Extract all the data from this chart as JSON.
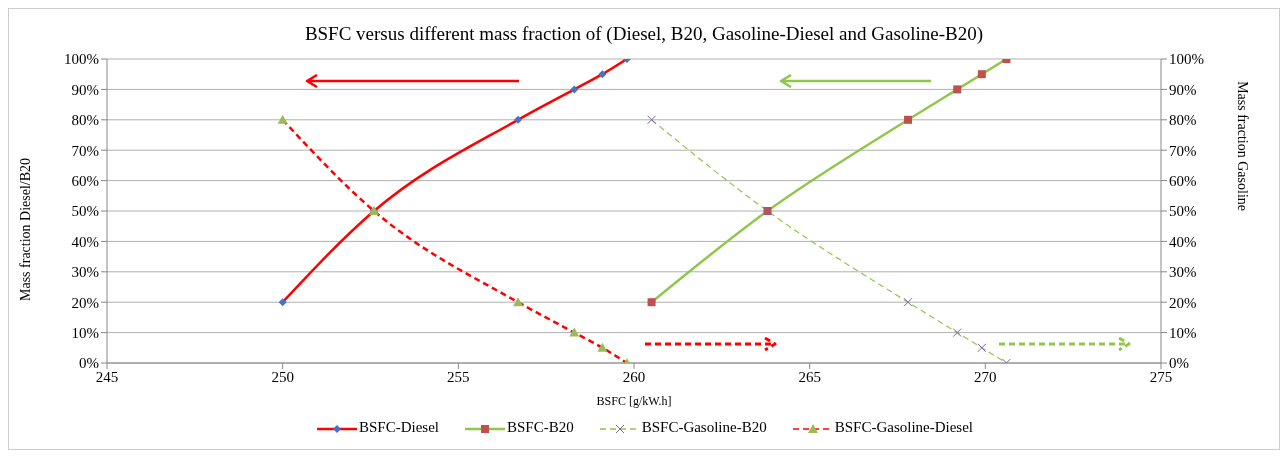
{
  "chart_data": {
    "type": "line",
    "title": "BSFC versus different mass fraction of (Diesel, B20, Gasoline-Diesel and Gasoline-B20)",
    "xlabel": "BSFC [g/kW.h]",
    "ylabel": "Mass fraction Diesel/B20",
    "y2label": "Mass fraction Gasoline",
    "xlim": [
      245,
      275
    ],
    "xticks": [
      245,
      250,
      255,
      260,
      265,
      270,
      275
    ],
    "ylim": [
      0,
      100
    ],
    "yticks": [
      {
        "value": 0,
        "label": "0%"
      },
      {
        "value": 10,
        "label": "10%"
      },
      {
        "value": 20,
        "label": "20%"
      },
      {
        "value": 30,
        "label": "30%"
      },
      {
        "value": 40,
        "label": "40%"
      },
      {
        "value": 50,
        "label": "50%"
      },
      {
        "value": 60,
        "label": "60%"
      },
      {
        "value": 70,
        "label": "70%"
      },
      {
        "value": 80,
        "label": "80%"
      },
      {
        "value": 90,
        "label": "90%"
      },
      {
        "value": 100,
        "label": "100%"
      }
    ],
    "y2lim": [
      0,
      100
    ],
    "y2ticks": [
      {
        "value": 0,
        "label": "0%"
      },
      {
        "value": 10,
        "label": "10%"
      },
      {
        "value": 20,
        "label": "20%"
      },
      {
        "value": 30,
        "label": "30%"
      },
      {
        "value": 40,
        "label": "40%"
      },
      {
        "value": 50,
        "label": "50%"
      },
      {
        "value": 60,
        "label": "60%"
      },
      {
        "value": 70,
        "label": "70%"
      },
      {
        "value": 80,
        "label": "80%"
      },
      {
        "value": 90,
        "label": "90%"
      },
      {
        "value": 100,
        "label": "100%"
      }
    ],
    "grid": "y",
    "legend": "bottom",
    "series": [
      {
        "name": "BSFC-Diesel",
        "color": "#ff0000",
        "marker": "diamond",
        "line_style": "solid",
        "x": [
          250.0,
          252.6,
          256.7,
          258.3,
          259.1,
          259.8
        ],
        "values": [
          20,
          50,
          80,
          90,
          95,
          100
        ]
      },
      {
        "name": "BSFC-B20",
        "color": "#8fc74a",
        "marker": "square",
        "line_style": "solid",
        "x": [
          260.5,
          263.8,
          267.8,
          269.2,
          269.9,
          270.6
        ],
        "values": [
          20,
          50,
          80,
          90,
          95,
          100
        ]
      },
      {
        "name": "BSFC-Gasoline-B20",
        "color": "#8fc74a",
        "marker": "cross",
        "line_style": "dashed",
        "x": [
          260.5,
          263.8,
          267.8,
          269.2,
          269.9,
          270.6
        ],
        "values": [
          80,
          50,
          20,
          10,
          5,
          0
        ]
      },
      {
        "name": "BSFC-Gasoline-Diesel",
        "color": "#ff0000",
        "marker": "triangle",
        "line_style": "dashed",
        "x": [
          250.0,
          252.6,
          256.7,
          258.3,
          259.1,
          259.8
        ],
        "values": [
          80,
          50,
          20,
          10,
          5,
          0
        ]
      }
    ]
  }
}
